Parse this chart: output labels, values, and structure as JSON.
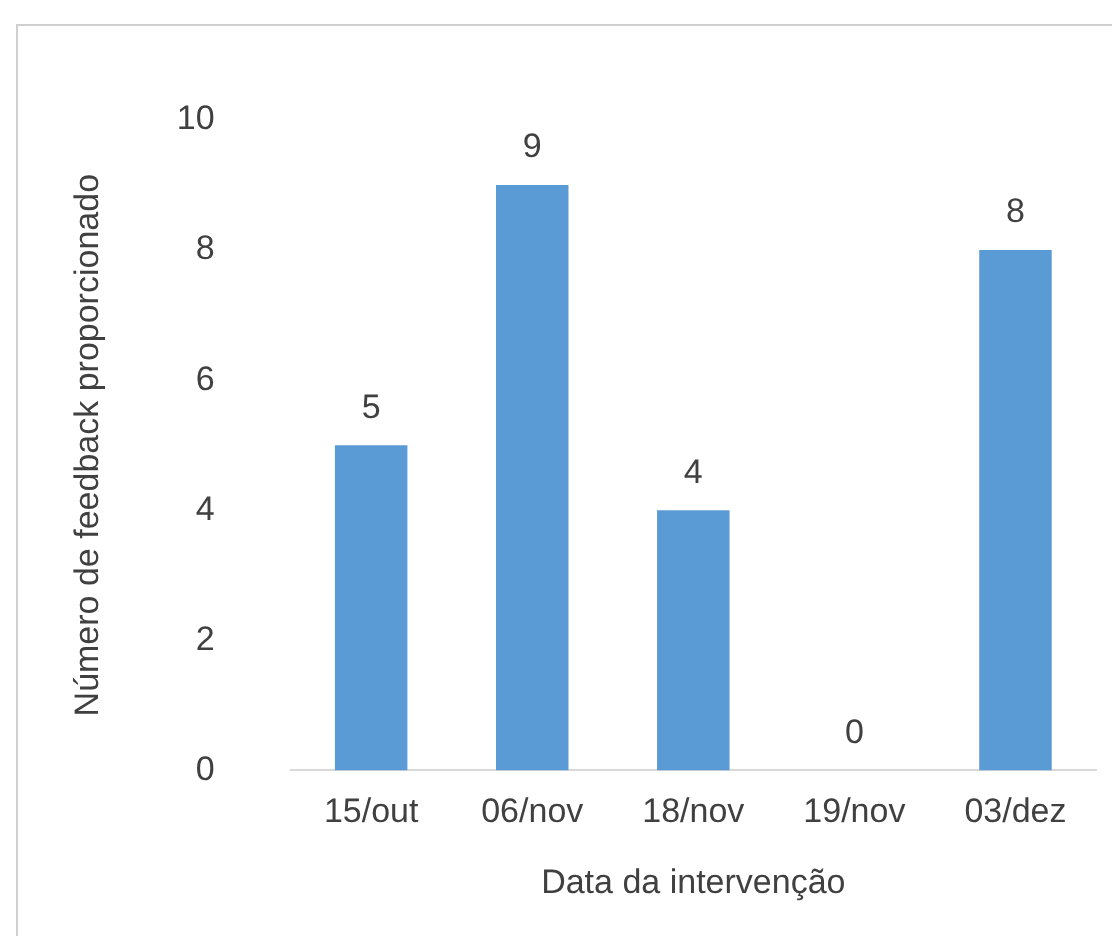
{
  "chart_data": {
    "type": "bar",
    "categories": [
      "15/out",
      "06/nov",
      "18/nov",
      "19/nov",
      "03/dez"
    ],
    "values": [
      5,
      9,
      4,
      0,
      8
    ],
    "color": "#5b9bd5",
    "ylim": [
      0,
      10
    ],
    "yticks": [
      0,
      2,
      4,
      6,
      8,
      10
    ],
    "ylabel": "Número de feedback proporcionado",
    "xlabel": "Data da intervenção",
    "data_labels": true,
    "grid": false,
    "legend": false
  }
}
